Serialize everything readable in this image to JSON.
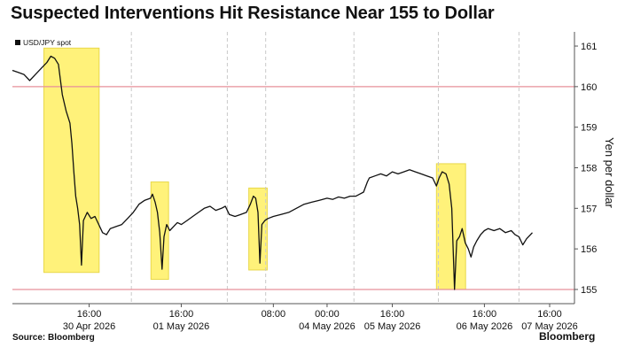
{
  "header": {
    "title": "Suspected Interventions Hit Resistance Near 155 to Dollar"
  },
  "footer": {
    "source": "Source: Bloomberg",
    "logo": "Bloomberg"
  },
  "colors": {
    "series": "#111111",
    "highlight": "#fff27a",
    "highlight_edge": "#e8d84a",
    "reference_line": "#e7909a",
    "grid": "#c9c9c9",
    "axis": "#555555"
  },
  "chart_data": {
    "type": "line",
    "title": "Suspected Interventions Hit Resistance Near 155 to Dollar",
    "ylabel": "Yen per dollar",
    "ylim": [
      154.65,
      161.35
    ],
    "y_ticks": [
      155,
      156,
      157,
      158,
      159,
      160,
      161
    ],
    "x_range": [
      0,
      14
    ],
    "x_ticks": [
      {
        "x": 2.0,
        "time": "16:00",
        "date": "30 Apr 2026"
      },
      {
        "x": 4.4,
        "time": "16:00",
        "date": "01 May 2026"
      },
      {
        "x": 6.8,
        "time": "08:00",
        "date": ""
      },
      {
        "x": 8.2,
        "time": "00:00",
        "date": "04 May 2026"
      },
      {
        "x": 9.9,
        "time": "16:00",
        "date": "05 May 2026"
      },
      {
        "x": 12.3,
        "time": "16:00",
        "date": "06 May 2026"
      },
      {
        "x": 14.0,
        "time": "16:00",
        "date": "07 May 2026"
      }
    ],
    "session_breaks": [
      3.1,
      5.6,
      6.6,
      8.9,
      11.1,
      13.2
    ],
    "reference_lines": [
      155,
      160
    ],
    "legend": [
      {
        "label": "USD/JPY spot"
      }
    ],
    "highlights": [
      {
        "x0": 0.82,
        "x1": 2.26,
        "y0": 155.42,
        "y1": 160.95
      },
      {
        "x0": 3.61,
        "x1": 4.07,
        "y0": 155.25,
        "y1": 157.65
      },
      {
        "x0": 6.16,
        "x1": 6.64,
        "y0": 155.48,
        "y1": 157.5
      },
      {
        "x0": 11.05,
        "x1": 11.81,
        "y0": 155.0,
        "y1": 158.1
      }
    ],
    "series": [
      {
        "name": "USD/JPY spot",
        "points": [
          [
            0.0,
            160.4
          ],
          [
            0.15,
            160.35
          ],
          [
            0.3,
            160.3
          ],
          [
            0.45,
            160.15
          ],
          [
            0.6,
            160.3
          ],
          [
            0.75,
            160.45
          ],
          [
            0.9,
            160.6
          ],
          [
            1.0,
            160.75
          ],
          [
            1.1,
            160.7
          ],
          [
            1.2,
            160.55
          ],
          [
            1.3,
            159.8
          ],
          [
            1.4,
            159.4
          ],
          [
            1.5,
            159.1
          ],
          [
            1.55,
            158.6
          ],
          [
            1.6,
            157.9
          ],
          [
            1.65,
            157.3
          ],
          [
            1.7,
            157.0
          ],
          [
            1.75,
            156.6
          ],
          [
            1.8,
            155.6
          ],
          [
            1.85,
            156.7
          ],
          [
            1.95,
            156.9
          ],
          [
            2.05,
            156.75
          ],
          [
            2.15,
            156.8
          ],
          [
            2.25,
            156.6
          ],
          [
            2.35,
            156.4
          ],
          [
            2.45,
            156.35
          ],
          [
            2.55,
            156.5
          ],
          [
            2.7,
            156.55
          ],
          [
            2.85,
            156.6
          ],
          [
            3.0,
            156.75
          ],
          [
            3.15,
            156.9
          ],
          [
            3.3,
            157.1
          ],
          [
            3.45,
            157.2
          ],
          [
            3.6,
            157.25
          ],
          [
            3.65,
            157.35
          ],
          [
            3.72,
            157.15
          ],
          [
            3.78,
            156.9
          ],
          [
            3.84,
            156.4
          ],
          [
            3.9,
            155.5
          ],
          [
            3.95,
            156.3
          ],
          [
            4.02,
            156.6
          ],
          [
            4.1,
            156.45
          ],
          [
            4.2,
            156.55
          ],
          [
            4.3,
            156.65
          ],
          [
            4.4,
            156.6
          ],
          [
            4.55,
            156.7
          ],
          [
            4.7,
            156.8
          ],
          [
            4.85,
            156.9
          ],
          [
            5.0,
            157.0
          ],
          [
            5.15,
            157.05
          ],
          [
            5.3,
            156.95
          ],
          [
            5.45,
            157.0
          ],
          [
            5.55,
            157.05
          ],
          [
            5.65,
            156.85
          ],
          [
            5.8,
            156.8
          ],
          [
            5.95,
            156.85
          ],
          [
            6.1,
            156.9
          ],
          [
            6.2,
            157.1
          ],
          [
            6.28,
            157.3
          ],
          [
            6.34,
            157.25
          ],
          [
            6.4,
            156.9
          ],
          [
            6.45,
            155.65
          ],
          [
            6.5,
            156.6
          ],
          [
            6.58,
            156.7
          ],
          [
            6.66,
            156.75
          ],
          [
            6.8,
            156.8
          ],
          [
            7.0,
            156.85
          ],
          [
            7.2,
            156.9
          ],
          [
            7.4,
            157.0
          ],
          [
            7.6,
            157.1
          ],
          [
            7.8,
            157.15
          ],
          [
            8.0,
            157.2
          ],
          [
            8.2,
            157.25
          ],
          [
            8.35,
            157.22
          ],
          [
            8.5,
            157.28
          ],
          [
            8.65,
            157.25
          ],
          [
            8.8,
            157.3
          ],
          [
            8.95,
            157.3
          ],
          [
            9.05,
            157.35
          ],
          [
            9.15,
            157.4
          ],
          [
            9.25,
            157.65
          ],
          [
            9.3,
            157.75
          ],
          [
            9.45,
            157.8
          ],
          [
            9.6,
            157.85
          ],
          [
            9.75,
            157.8
          ],
          [
            9.9,
            157.9
          ],
          [
            10.05,
            157.85
          ],
          [
            10.2,
            157.9
          ],
          [
            10.35,
            157.95
          ],
          [
            10.5,
            157.9
          ],
          [
            10.65,
            157.85
          ],
          [
            10.8,
            157.8
          ],
          [
            10.95,
            157.75
          ],
          [
            11.05,
            157.55
          ],
          [
            11.12,
            157.75
          ],
          [
            11.2,
            157.9
          ],
          [
            11.3,
            157.85
          ],
          [
            11.38,
            157.6
          ],
          [
            11.45,
            157.0
          ],
          [
            11.52,
            155.0
          ],
          [
            11.58,
            156.2
          ],
          [
            11.65,
            156.3
          ],
          [
            11.72,
            156.5
          ],
          [
            11.8,
            156.15
          ],
          [
            11.88,
            156.0
          ],
          [
            11.95,
            155.8
          ],
          [
            12.02,
            156.05
          ],
          [
            12.1,
            156.2
          ],
          [
            12.2,
            156.35
          ],
          [
            12.3,
            156.45
          ],
          [
            12.4,
            156.5
          ],
          [
            12.55,
            156.45
          ],
          [
            12.7,
            156.5
          ],
          [
            12.85,
            156.4
          ],
          [
            13.0,
            156.45
          ],
          [
            13.1,
            156.35
          ],
          [
            13.2,
            156.3
          ],
          [
            13.3,
            156.1
          ],
          [
            13.4,
            156.25
          ],
          [
            13.5,
            156.35
          ],
          [
            13.55,
            156.4
          ]
        ]
      }
    ]
  }
}
